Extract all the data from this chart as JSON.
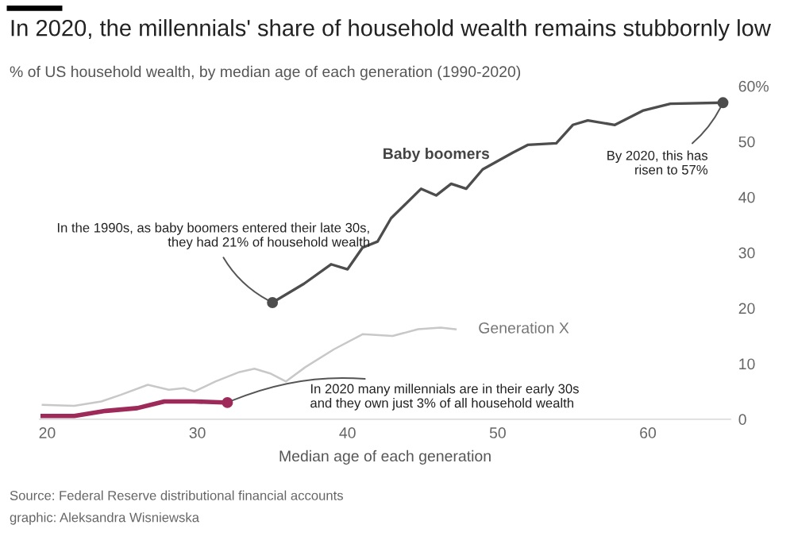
{
  "chart_data": {
    "type": "line",
    "title": "In 2020, the millennials' share of household wealth remains stubbornly low",
    "subtitle": "% of US household wealth, by median age of each generation (1990-2020)",
    "xlabel": "Median age of each generation",
    "xlim": [
      19.5,
      65.5
    ],
    "xticks": [
      20,
      30,
      40,
      50,
      60
    ],
    "ylim": [
      0,
      60
    ],
    "yticks": [
      0,
      10,
      20,
      30,
      40,
      50,
      {
        "value": 60,
        "label": "60%"
      }
    ],
    "grid": false,
    "legend": false,
    "line_style": "solid",
    "series": [
      {
        "name": "Baby boomers",
        "color": "#4d4d4d",
        "x": [
          35,
          37.1,
          38.9,
          40,
          41,
          42,
          42.9,
          44.9,
          45.9,
          46.9,
          47.9,
          49,
          51,
          52,
          53.9,
          55,
          56,
          57.8,
          59.7,
          61.5,
          65
        ],
        "values": [
          21,
          24.4,
          27.9,
          27,
          30.9,
          32,
          36.2,
          41.5,
          40.3,
          42.4,
          41.5,
          45,
          48,
          49.4,
          49.7,
          53,
          53.8,
          53,
          55.6,
          56.8,
          57
        ]
      },
      {
        "name": "Generation X",
        "color": "#c8c8c8",
        "x": [
          19.7,
          21.8,
          23.6,
          24.9,
          26.7,
          28.1,
          29.1,
          29.8,
          31.2,
          32.8,
          33.8,
          34.9,
          35.9,
          37.2,
          39.1,
          41,
          43,
          44.7,
          46.2,
          47.2
        ],
        "values": [
          2.6,
          2.4,
          3.2,
          4.4,
          6.2,
          5.3,
          5.6,
          5,
          6.8,
          8.5,
          9.1,
          8.2,
          6.8,
          9.4,
          12.6,
          15.3,
          15,
          16.2,
          16.5,
          16.2
        ]
      },
      {
        "color": "#9e2a5a",
        "x": [
          19.7,
          21.8,
          23.9,
          26,
          27.8,
          29.8,
          32
        ],
        "values": [
          0.6,
          0.6,
          1.5,
          2,
          3.2,
          3.2,
          3
        ]
      }
    ],
    "annotations": [
      {
        "text": "In the 1990s, as baby boomers entered their late 30s,\nthey had 21% of household wealth",
        "x": 35,
        "y": 21
      },
      {
        "text": "By 2020, this has\nrisen to 57%",
        "x": 65,
        "y": 57
      },
      {
        "text": "In 2020 many millennials are in their early 30s\nand they own just 3% of all household wealth",
        "x": 32,
        "y": 3
      },
      "Source: Federal Reserve distributional financial accounts",
      "graphic: Aleksandra Wisniewska"
    ]
  }
}
